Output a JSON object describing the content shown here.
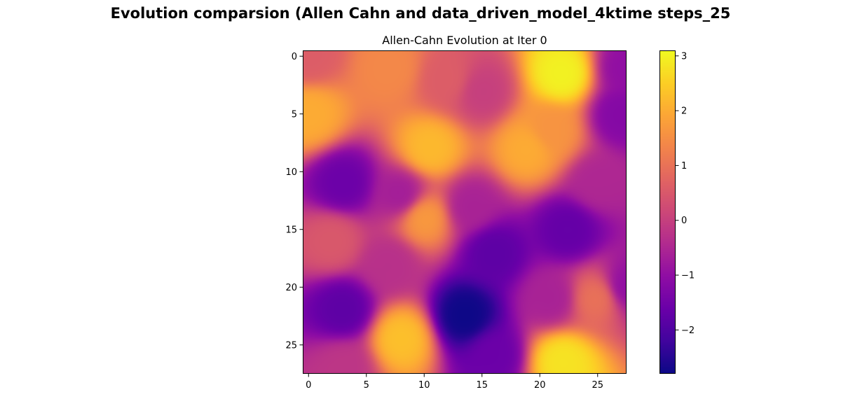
{
  "figure": {
    "suptitle": "Evolution comparsion (Allen Cahn and data_driven_model_4ktime steps_25"
  },
  "chart_data": {
    "type": "heatmap",
    "title": "Allen-Cahn Evolution at Iter 0",
    "xlabel": "",
    "ylabel": "",
    "grid_size": [
      28,
      28
    ],
    "xlim": [
      -0.5,
      27.5
    ],
    "ylim": [
      27.5,
      -0.5
    ],
    "x_ticks": [
      0,
      5,
      10,
      15,
      20,
      25
    ],
    "x_tick_labels": [
      "0",
      "5",
      "10",
      "15",
      "20",
      "25"
    ],
    "y_ticks": [
      0,
      5,
      10,
      15,
      20,
      25
    ],
    "y_tick_labels": [
      "0",
      "5",
      "10",
      "15",
      "20",
      "25"
    ],
    "colormap": "plasma",
    "colorbar": {
      "vmin": -2.8,
      "vmax": 3.1,
      "ticks": [
        3,
        2,
        1,
        0,
        -1,
        -2
      ],
      "tick_labels": [
        "3",
        "2",
        "1",
        "0",
        "−1",
        "−2"
      ]
    },
    "field_features": [
      {
        "row": 1.5,
        "col": 22,
        "value": 3.0
      },
      {
        "row": 0,
        "col": 0,
        "value": 0.6
      },
      {
        "row": 1,
        "col": 7,
        "value": 1.4
      },
      {
        "row": 2,
        "col": 12,
        "value": 0.6
      },
      {
        "row": 3,
        "col": 15,
        "value": 0.0
      },
      {
        "row": 5,
        "col": 0,
        "value": 2.0
      },
      {
        "row": 5,
        "col": 27,
        "value": -1.2
      },
      {
        "row": 1,
        "col": 27.5,
        "value": -1.0
      },
      {
        "row": 8,
        "col": 10.5,
        "value": 2.2
      },
      {
        "row": 8,
        "col": 19,
        "value": 2.0
      },
      {
        "row": 6.5,
        "col": 21,
        "value": 1.6
      },
      {
        "row": 11,
        "col": 3,
        "value": -1.6
      },
      {
        "row": 12,
        "col": 8,
        "value": -0.7
      },
      {
        "row": 11,
        "col": 25,
        "value": -0.5
      },
      {
        "row": 14,
        "col": 10,
        "value": 1.7
      },
      {
        "row": 15,
        "col": 22.5,
        "value": -1.7
      },
      {
        "row": 17,
        "col": 16,
        "value": -1.8
      },
      {
        "row": 16,
        "col": 2,
        "value": 0.5
      },
      {
        "row": 18,
        "col": 7,
        "value": -0.3
      },
      {
        "row": 22,
        "col": 3,
        "value": -1.8
      },
      {
        "row": 22.5,
        "col": 13.5,
        "value": -2.8
      },
      {
        "row": 24.5,
        "col": 8,
        "value": 2.3
      },
      {
        "row": 21,
        "col": 21,
        "value": -0.6
      },
      {
        "row": 21,
        "col": 25,
        "value": 1.0
      },
      {
        "row": 26.5,
        "col": 22,
        "value": 2.8
      },
      {
        "row": 26,
        "col": 16,
        "value": -1.6
      },
      {
        "row": 27,
        "col": 3,
        "value": -0.2
      },
      {
        "row": 20,
        "col": 27.5,
        "value": -1.0
      },
      {
        "row": 13,
        "col": 14,
        "value": -0.6
      }
    ]
  }
}
